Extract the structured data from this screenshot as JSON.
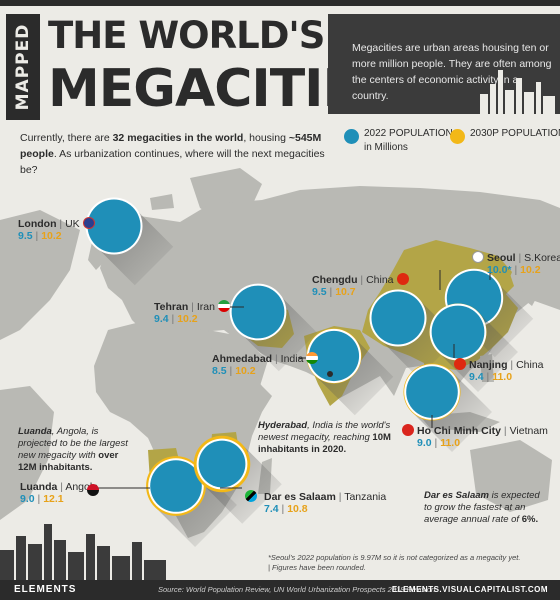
{
  "header": {
    "badge": "MAPPED",
    "title_line1": "THE WORLD'S NEXT",
    "title_line2": "MEGACITIES",
    "intro": "Megacities are urban areas housing ten or more million people. They are often among the centers of economic activity in a country."
  },
  "lead": {
    "part1": "Currently, there are ",
    "bold1": "32 megacities in the world",
    "part2": ", housing ",
    "bold2": "~545M people",
    "part3": ". As urbanization continues, where will the next megacities be?"
  },
  "legend": {
    "pop2022": "2022 POPULATION",
    "pop2030": "2030P POPULATION",
    "unit": "in Millions",
    "color_2022": "#1f8fb8",
    "color_2030": "#f2b818"
  },
  "cities": [
    {
      "name": "London",
      "country": "UK",
      "v2022": "9.5",
      "v2030": "10.2",
      "flag": "uk-flag-icon"
    },
    {
      "name": "Tehran",
      "country": "Iran",
      "v2022": "9.4",
      "v2030": "10.2",
      "flag": "iran-flag-icon"
    },
    {
      "name": "Ahmedabad",
      "country": "India",
      "v2022": "8.5",
      "v2030": "10.2",
      "flag": "india-flag-icon"
    },
    {
      "name": "Chengdu",
      "country": "China",
      "v2022": "9.5",
      "v2030": "10.7",
      "flag": "china-flag-icon"
    },
    {
      "name": "Seoul",
      "country": "S.Korea",
      "v2022": "10.0*",
      "v2030": "10.2",
      "flag": "korea-flag-icon"
    },
    {
      "name": "Nanjing",
      "country": "China",
      "v2022": "9.4",
      "v2030": "11.0",
      "flag": "china-flag-icon"
    },
    {
      "name": "Ho Chi Minh City",
      "country": "Vietnam",
      "v2022": "9.0",
      "v2030": "11.0",
      "flag": "vietnam-flag-icon"
    },
    {
      "name": "Luanda",
      "country": "Angola",
      "v2022": "9.0",
      "v2030": "12.1",
      "flag": "angola-flag-icon"
    },
    {
      "name": "Dar es Salaam",
      "country": "Tanzania",
      "v2022": "7.4",
      "v2030": "10.8",
      "flag": "tanzania-flag-icon"
    }
  ],
  "notes": {
    "luanda_city": "Luanda",
    "luanda_text1": ", Angola, is projected to be the largest new megacity with ",
    "luanda_bold": "over 12M inhabitants.",
    "hyderabad_city": "Hyderabad",
    "hyderabad_text1": ", India is the world's newest megacity, reaching ",
    "hyderabad_bold": "10M inhabitants in 2020.",
    "dar_city": "Dar es Salaam",
    "dar_text1": " is expected to grow the fastest at an average annual rate of ",
    "dar_bold": "6%."
  },
  "footnote": {
    "line1": "*Seoul's 2022 population is 9.97M so it is not categorized as a megacity yet.",
    "line2": "| Figures have been rounded."
  },
  "footer": {
    "brand": "ELEMENTS",
    "source": "Source: World Population Review, UN World Urbanization Prospects 2018 Revision",
    "url": "ELEMENTS.VISUALCAPITALIST.COM"
  }
}
